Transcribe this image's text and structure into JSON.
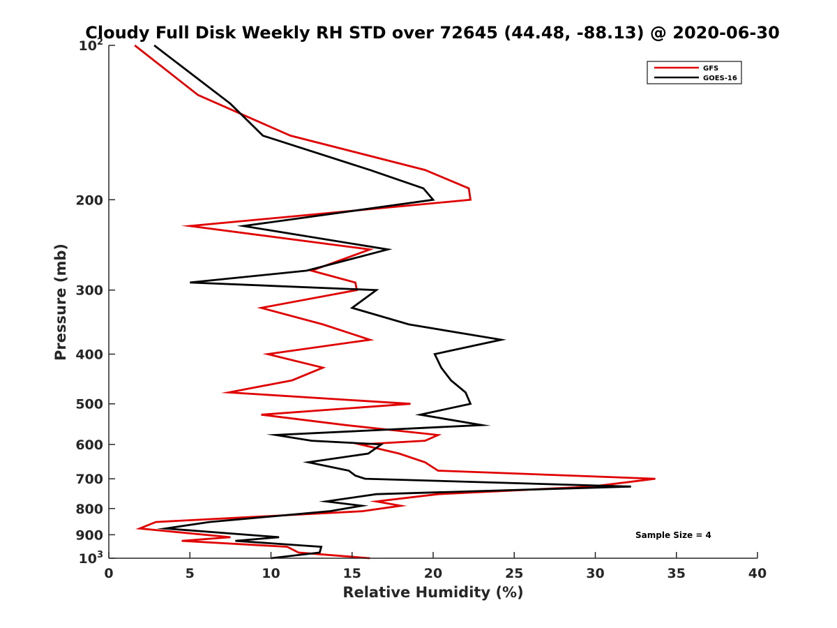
{
  "chart_data": {
    "type": "line",
    "title": "Cloudy Full Disk Weekly RH STD over 72645 (44.48, -88.13) @ 2020-06-30",
    "xlabel": "Relative Humidity (%)",
    "ylabel": "Pressure (mb)",
    "xlim": [
      0,
      40
    ],
    "ylim": [
      100,
      1000
    ],
    "yscale": "log",
    "y_reversed": true,
    "grid": false,
    "legend_position": "top-right",
    "x_ticks": [
      "0",
      "5",
      "10",
      "15",
      "20",
      "25",
      "30",
      "35",
      "40"
    ],
    "y_ticks": [
      {
        "value": 100,
        "base": "10",
        "exp": "2"
      },
      {
        "value": 200,
        "label": "200"
      },
      {
        "value": 300,
        "label": "300"
      },
      {
        "value": 400,
        "label": "400"
      },
      {
        "value": 500,
        "label": "500"
      },
      {
        "value": 600,
        "label": "600"
      },
      {
        "value": 700,
        "label": "700"
      },
      {
        "value": 800,
        "label": "800"
      },
      {
        "value": 900,
        "label": "900"
      },
      {
        "value": 1000,
        "base": "10",
        "exp": "3"
      }
    ],
    "annotation": "Sample Size = 4",
    "series": [
      {
        "name": "GFS",
        "color": "#e00000",
        "points": [
          [
            1.6,
            100
          ],
          [
            5.5,
            125
          ],
          [
            11.2,
            150
          ],
          [
            19.5,
            175
          ],
          [
            22.2,
            190
          ],
          [
            22.3,
            200
          ],
          [
            5.0,
            225
          ],
          [
            16.1,
            250
          ],
          [
            12.5,
            275
          ],
          [
            15.2,
            290
          ],
          [
            15.3,
            300
          ],
          [
            9.4,
            325
          ],
          [
            13.2,
            350
          ],
          [
            16.1,
            375
          ],
          [
            9.8,
            400
          ],
          [
            13.2,
            425
          ],
          [
            11.3,
            450
          ],
          [
            7.4,
            475
          ],
          [
            18.6,
            500
          ],
          [
            9.4,
            525
          ],
          [
            14.6,
            550
          ],
          [
            20.3,
            575
          ],
          [
            19.5,
            590
          ],
          [
            15.5,
            600
          ],
          [
            17.9,
            625
          ],
          [
            19.5,
            650
          ],
          [
            20.3,
            675
          ],
          [
            33.7,
            700
          ],
          [
            29.8,
            725
          ],
          [
            20.3,
            750
          ],
          [
            16.5,
            775
          ],
          [
            18.0,
            790
          ],
          [
            15.6,
            810
          ],
          [
            2.9,
            850
          ],
          [
            1.9,
            875
          ],
          [
            7.5,
            910
          ],
          [
            4.5,
            925
          ],
          [
            11.0,
            950
          ],
          [
            11.7,
            975
          ],
          [
            16.1,
            1000
          ]
        ]
      },
      {
        "name": "GOES-16",
        "color": "#000000",
        "points": [
          [
            2.8,
            100
          ],
          [
            7.5,
            130
          ],
          [
            9.5,
            150
          ],
          [
            16.1,
            175
          ],
          [
            19.4,
            190
          ],
          [
            20.0,
            200
          ],
          [
            8.3,
            225
          ],
          [
            17.2,
            250
          ],
          [
            12.2,
            275
          ],
          [
            5.0,
            290
          ],
          [
            16.5,
            300
          ],
          [
            15.0,
            325
          ],
          [
            18.5,
            350
          ],
          [
            24.2,
            375
          ],
          [
            20.1,
            400
          ],
          [
            20.5,
            425
          ],
          [
            21.1,
            450
          ],
          [
            22.0,
            475
          ],
          [
            22.3,
            500
          ],
          [
            19.2,
            525
          ],
          [
            23.0,
            550
          ],
          [
            10.3,
            575
          ],
          [
            12.5,
            590
          ],
          [
            16.8,
            600
          ],
          [
            16.0,
            625
          ],
          [
            12.3,
            650
          ],
          [
            14.8,
            675
          ],
          [
            15.2,
            690
          ],
          [
            15.8,
            700
          ],
          [
            32.2,
            725
          ],
          [
            16.5,
            750
          ],
          [
            13.4,
            775
          ],
          [
            15.6,
            790
          ],
          [
            13.6,
            810
          ],
          [
            6.2,
            850
          ],
          [
            3.5,
            875
          ],
          [
            10.5,
            910
          ],
          [
            7.8,
            925
          ],
          [
            13.1,
            950
          ],
          [
            13.0,
            975
          ],
          [
            10.0,
            1000
          ]
        ]
      }
    ]
  }
}
